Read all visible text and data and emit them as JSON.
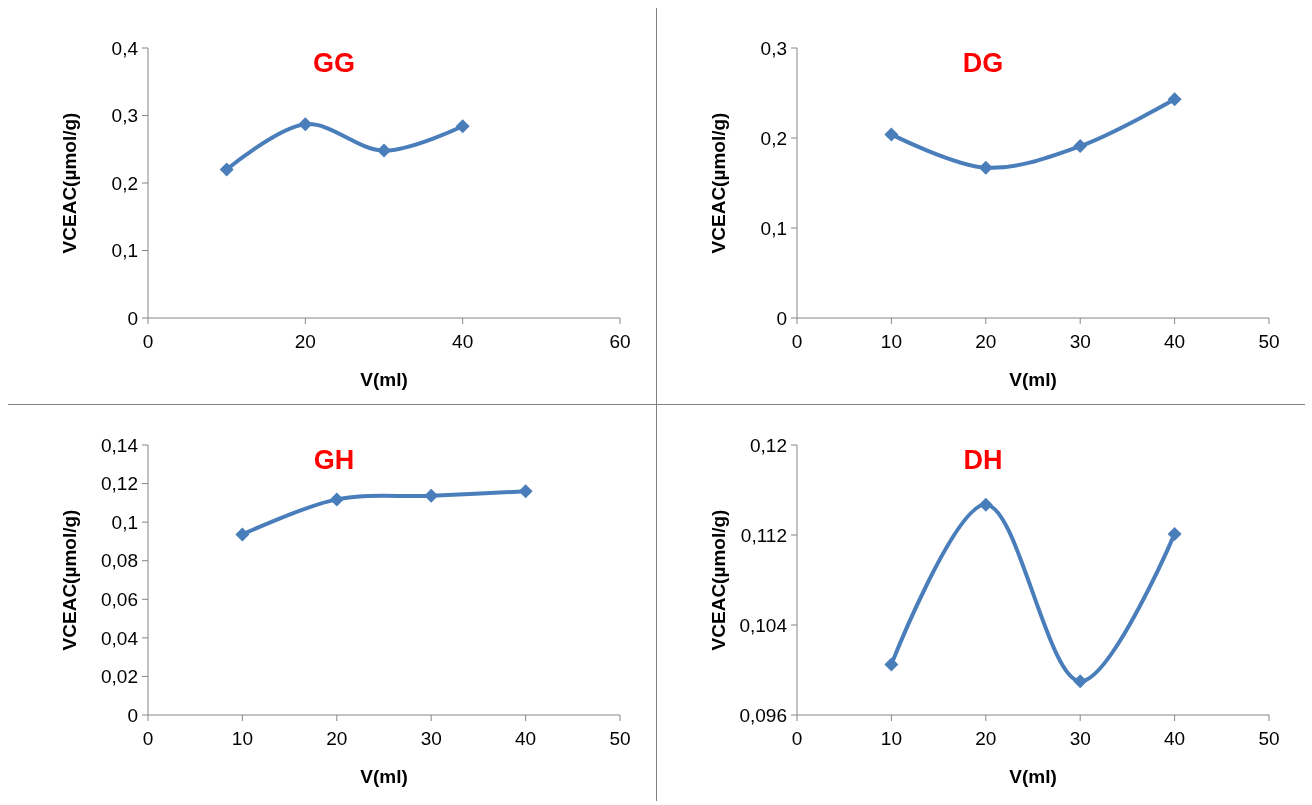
{
  "chart_data": [
    {
      "type": "line",
      "title": "GG",
      "xlabel": "V(ml)",
      "ylabel": "VCEAC(µmol/g)",
      "marker": "diamond",
      "x": [
        10,
        20,
        30,
        40
      ],
      "series": [
        {
          "color": "#4a7ebb",
          "values": [
            0.22,
            0.287,
            0.248,
            0.284
          ]
        }
      ],
      "xlim": [
        0,
        60
      ],
      "xticks": [
        0,
        20,
        40,
        60
      ],
      "ylim": [
        0,
        0.4
      ],
      "yticks": [
        {
          "value": 0,
          "label": "0"
        },
        {
          "value": 0.1,
          "label": "0,1"
        },
        {
          "value": 0.2,
          "label": "0,2"
        },
        {
          "value": 0.3,
          "label": "0,3"
        },
        {
          "value": 0.4,
          "label": "0,4"
        }
      ]
    },
    {
      "type": "line",
      "title": "DG",
      "xlabel": "V(ml)",
      "ylabel": "VCEAC(µmol/g)",
      "marker": "diamond",
      "x": [
        10,
        20,
        30,
        40
      ],
      "series": [
        {
          "color": "#4a7ebb",
          "values": [
            0.204,
            0.167,
            0.191,
            0.243
          ]
        }
      ],
      "xlim": [
        0,
        50
      ],
      "xticks": [
        0,
        10,
        20,
        30,
        40,
        50
      ],
      "ylim": [
        0,
        0.3
      ],
      "yticks": [
        {
          "value": 0,
          "label": "0"
        },
        {
          "value": 0.1,
          "label": "0,1"
        },
        {
          "value": 0.2,
          "label": "0,2"
        },
        {
          "value": 0.3,
          "label": "0,3"
        }
      ]
    },
    {
      "type": "line",
      "title": "GH",
      "xlabel": "V(ml)",
      "ylabel": "VCEAC(µmol/g)",
      "marker": "diamond",
      "x": [
        10,
        20,
        30,
        40
      ],
      "series": [
        {
          "color": "#4a7ebb",
          "values": [
            0.0936,
            0.1118,
            0.1137,
            0.116
          ]
        }
      ],
      "xlim": [
        0,
        50
      ],
      "xticks": [
        0,
        10,
        20,
        30,
        40,
        50
      ],
      "ylim": [
        0,
        0.14
      ],
      "yticks": [
        {
          "value": 0,
          "label": "0"
        },
        {
          "value": 0.02,
          "label": "0,02"
        },
        {
          "value": 0.04,
          "label": "0,04"
        },
        {
          "value": 0.06,
          "label": "0,06"
        },
        {
          "value": 0.08,
          "label": "0,08"
        },
        {
          "value": 0.1,
          "label": "0,1"
        },
        {
          "value": 0.12,
          "label": "0,12"
        },
        {
          "value": 0.14,
          "label": "0,14"
        }
      ]
    },
    {
      "type": "line",
      "title": "DH",
      "xlabel": "V(ml)",
      "ylabel": "VCEAC(µmol/g)",
      "marker": "diamond",
      "x": [
        10,
        20,
        30,
        40
      ],
      "series": [
        {
          "color": "#4a7ebb",
          "values": [
            0.1005,
            0.1147,
            0.099,
            0.1121
          ]
        }
      ],
      "xlim": [
        0,
        50
      ],
      "xticks": [
        0,
        10,
        20,
        30,
        40,
        50
      ],
      "ylim": [
        0.096,
        0.12
      ],
      "yticks": [
        {
          "value": 0.096,
          "label": "0,096"
        },
        {
          "value": 0.104,
          "label": "0,104"
        },
        {
          "value": 0.112,
          "label": "0,112"
        },
        {
          "value": 0.12,
          "label": "0,12"
        }
      ]
    }
  ]
}
